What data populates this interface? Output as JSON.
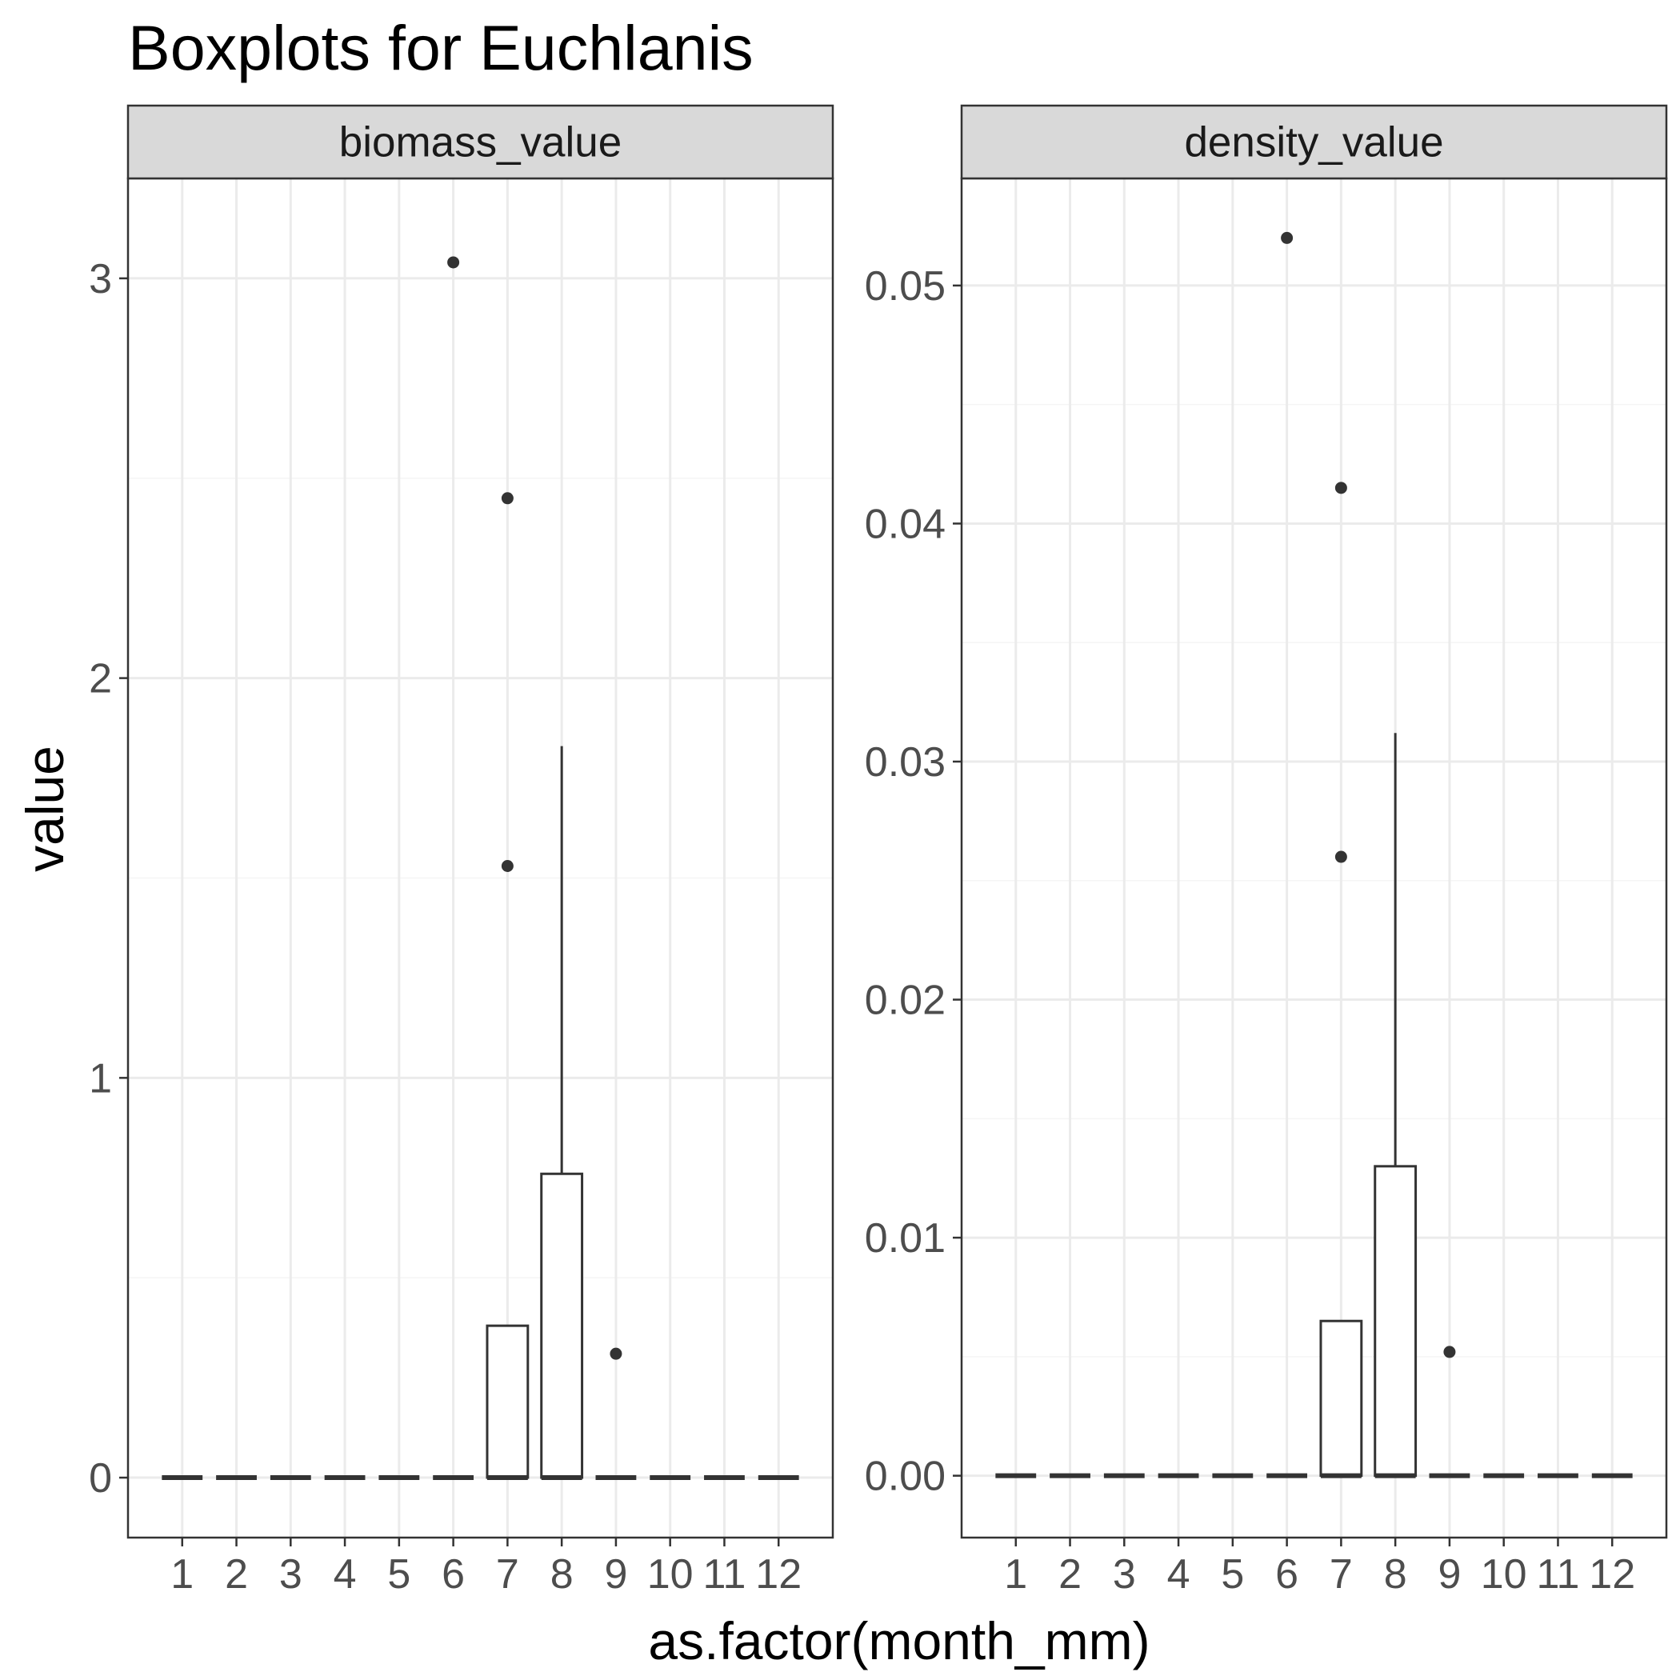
{
  "chart_data": {
    "type": "boxplot",
    "title": "Boxplots for Euchlanis",
    "xlabel": "as.factor(month_mm)",
    "ylabel": "value",
    "categories": [
      "1",
      "2",
      "3",
      "4",
      "5",
      "6",
      "7",
      "8",
      "9",
      "10",
      "11",
      "12"
    ],
    "panels": [
      {
        "label": "biomass_value",
        "ylim": [
          -0.15,
          3.25
        ],
        "yticks": [
          {
            "value": 0,
            "label": "0"
          },
          {
            "value": 1,
            "label": "1"
          },
          {
            "value": 2,
            "label": "2"
          },
          {
            "value": 3,
            "label": "3"
          }
        ],
        "boxes": [
          {
            "category": "1",
            "lower": 0,
            "q1": 0,
            "median": 0,
            "q3": 0,
            "upper": 0,
            "outliers": []
          },
          {
            "category": "2",
            "lower": 0,
            "q1": 0,
            "median": 0,
            "q3": 0,
            "upper": 0,
            "outliers": []
          },
          {
            "category": "3",
            "lower": 0,
            "q1": 0,
            "median": 0,
            "q3": 0,
            "upper": 0,
            "outliers": []
          },
          {
            "category": "4",
            "lower": 0,
            "q1": 0,
            "median": 0,
            "q3": 0,
            "upper": 0,
            "outliers": []
          },
          {
            "category": "5",
            "lower": 0,
            "q1": 0,
            "median": 0,
            "q3": 0,
            "upper": 0,
            "outliers": []
          },
          {
            "category": "6",
            "lower": 0,
            "q1": 0,
            "median": 0,
            "q3": 0,
            "upper": 0,
            "outliers": [
              3.04
            ]
          },
          {
            "category": "7",
            "lower": 0,
            "q1": 0,
            "median": 0,
            "q3": 0.38,
            "upper": 0.38,
            "outliers": [
              1.53,
              2.45
            ]
          },
          {
            "category": "8",
            "lower": 0,
            "q1": 0,
            "median": 0,
            "q3": 0.76,
            "upper": 1.83,
            "outliers": []
          },
          {
            "category": "9",
            "lower": 0,
            "q1": 0,
            "median": 0,
            "q3": 0,
            "upper": 0,
            "outliers": [
              0.31
            ]
          },
          {
            "category": "10",
            "lower": 0,
            "q1": 0,
            "median": 0,
            "q3": 0,
            "upper": 0,
            "outliers": []
          },
          {
            "category": "11",
            "lower": 0,
            "q1": 0,
            "median": 0,
            "q3": 0,
            "upper": 0,
            "outliers": []
          },
          {
            "category": "12",
            "lower": 0,
            "q1": 0,
            "median": 0,
            "q3": 0,
            "upper": 0,
            "outliers": []
          }
        ]
      },
      {
        "label": "density_value",
        "ylim": [
          -0.0026,
          0.0545
        ],
        "yticks": [
          {
            "value": 0,
            "label": "0.00"
          },
          {
            "value": 0.01,
            "label": "0.01"
          },
          {
            "value": 0.02,
            "label": "0.02"
          },
          {
            "value": 0.03,
            "label": "0.03"
          },
          {
            "value": 0.04,
            "label": "0.04"
          },
          {
            "value": 0.05,
            "label": "0.05"
          }
        ],
        "boxes": [
          {
            "category": "1",
            "lower": 0,
            "q1": 0,
            "median": 0,
            "q3": 0,
            "upper": 0,
            "outliers": []
          },
          {
            "category": "2",
            "lower": 0,
            "q1": 0,
            "median": 0,
            "q3": 0,
            "upper": 0,
            "outliers": []
          },
          {
            "category": "3",
            "lower": 0,
            "q1": 0,
            "median": 0,
            "q3": 0,
            "upper": 0,
            "outliers": []
          },
          {
            "category": "4",
            "lower": 0,
            "q1": 0,
            "median": 0,
            "q3": 0,
            "upper": 0,
            "outliers": []
          },
          {
            "category": "5",
            "lower": 0,
            "q1": 0,
            "median": 0,
            "q3": 0,
            "upper": 0,
            "outliers": []
          },
          {
            "category": "6",
            "lower": 0,
            "q1": 0,
            "median": 0,
            "q3": 0,
            "upper": 0,
            "outliers": [
              0.052
            ]
          },
          {
            "category": "7",
            "lower": 0,
            "q1": 0,
            "median": 0,
            "q3": 0.0065,
            "upper": 0.0065,
            "outliers": [
              0.026,
              0.0415
            ]
          },
          {
            "category": "8",
            "lower": 0,
            "q1": 0,
            "median": 0,
            "q3": 0.013,
            "upper": 0.0312,
            "outliers": []
          },
          {
            "category": "9",
            "lower": 0,
            "q1": 0,
            "median": 0,
            "q3": 0,
            "upper": 0,
            "outliers": [
              0.0052
            ]
          },
          {
            "category": "10",
            "lower": 0,
            "q1": 0,
            "median": 0,
            "q3": 0,
            "upper": 0,
            "outliers": []
          },
          {
            "category": "11",
            "lower": 0,
            "q1": 0,
            "median": 0,
            "q3": 0,
            "upper": 0,
            "outliers": []
          },
          {
            "category": "12",
            "lower": 0,
            "q1": 0,
            "median": 0,
            "q3": 0,
            "upper": 0,
            "outliers": []
          }
        ]
      }
    ],
    "grid": true,
    "legend": "none",
    "colors": {
      "panel_border": "#333333",
      "strip_fill": "#d9d9d9",
      "grid_major": "#ebebeb",
      "grid_minor": "#f5f5f5",
      "box_line": "#333333",
      "tick_text": "#4d4d4d"
    }
  }
}
